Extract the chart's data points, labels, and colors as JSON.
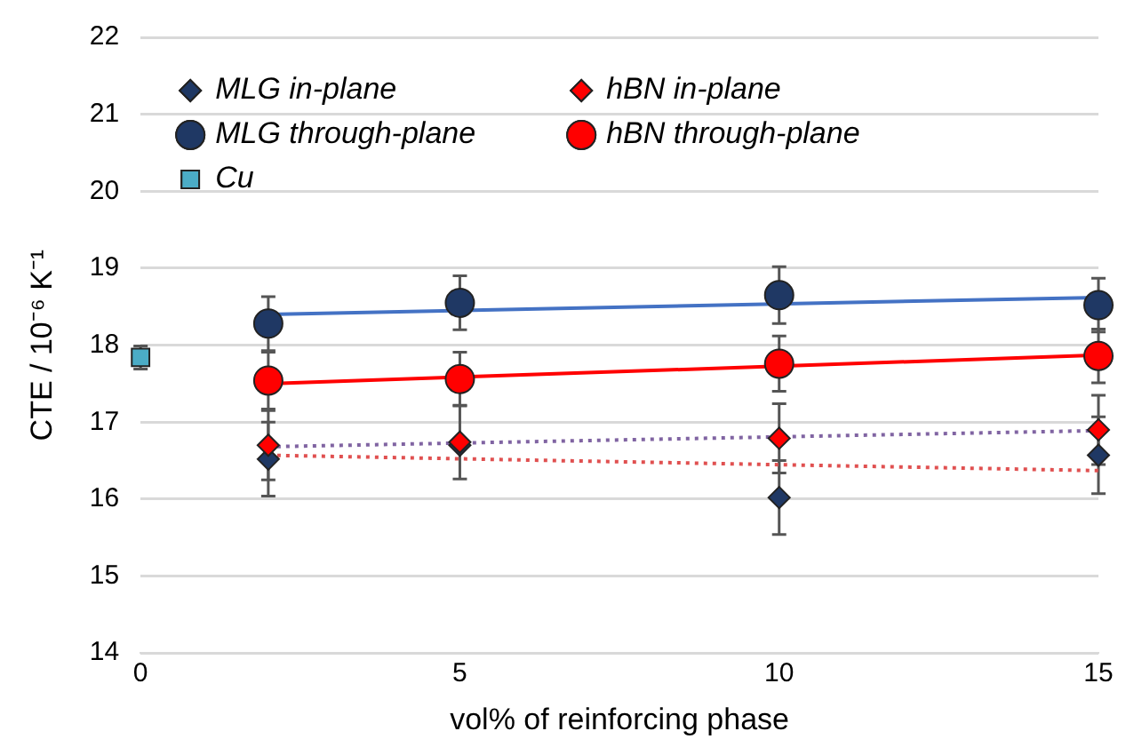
{
  "chart_data": {
    "type": "scatter",
    "xlabel": "vol% of reinforcing phase",
    "ylabel": "CTE / 10⁻⁶ K⁻¹",
    "xlim": [
      0,
      15
    ],
    "xticks": [
      0,
      5,
      10,
      15
    ],
    "ylim": [
      14,
      22
    ],
    "yticks": [
      14,
      15,
      16,
      17,
      18,
      19,
      20,
      21,
      22
    ],
    "grid": "y",
    "legend": "top left",
    "series": [
      {
        "name": "MLG in-plane",
        "color": "#1f3864",
        "marker": "diamond",
        "x": [
          2,
          5,
          10,
          15
        ],
        "values": [
          16.52,
          16.7,
          16.02,
          16.57
        ],
        "errors": [
          0.48,
          null,
          0.48,
          0.5
        ]
      },
      {
        "name": "hBN in-plane",
        "color": "#ff0000",
        "marker": "diamond",
        "x": [
          2,
          5,
          10,
          15
        ],
        "values": [
          16.7,
          16.74,
          16.79,
          16.9
        ],
        "errors": [
          0.45,
          0.48,
          0.45,
          0.45
        ]
      },
      {
        "name": "MLG through-plane",
        "color": "#1f3864",
        "marker": "circle",
        "x": [
          2,
          5,
          10,
          15
        ],
        "values": [
          18.28,
          18.55,
          18.65,
          18.52
        ],
        "errors": [
          0.35,
          0.35,
          0.37,
          0.35
        ]
      },
      {
        "name": "hBN through-plane",
        "color": "#ff0000",
        "marker": "circle",
        "x": [
          2,
          5,
          10,
          15
        ],
        "values": [
          17.54,
          17.56,
          17.76,
          17.86
        ],
        "errors": [
          0.37,
          0.35,
          0.36,
          0.35
        ]
      },
      {
        "name": "Cu",
        "color": "#4bacc6",
        "marker": "square",
        "x": [
          0
        ],
        "values": [
          17.84
        ],
        "errors": [
          0.15
        ]
      },
      {
        "type": "line",
        "color": "#4472c4",
        "marker": "none",
        "line_style": "solid",
        "x": [
          2,
          15
        ],
        "values": [
          18.4,
          18.62
        ]
      },
      {
        "type": "line",
        "color": "#ff0000",
        "marker": "none",
        "line_style": "solid",
        "x": [
          2,
          15
        ],
        "values": [
          17.5,
          17.87
        ]
      },
      {
        "type": "line",
        "color": "#8064a2",
        "marker": "none",
        "line_style": "dotted",
        "x": [
          2,
          15
        ],
        "values": [
          16.68,
          16.89
        ]
      },
      {
        "type": "line",
        "color": "#e05050",
        "marker": "none",
        "line_style": "dotted",
        "x": [
          2,
          15
        ],
        "values": [
          16.57,
          16.37
        ]
      }
    ]
  }
}
